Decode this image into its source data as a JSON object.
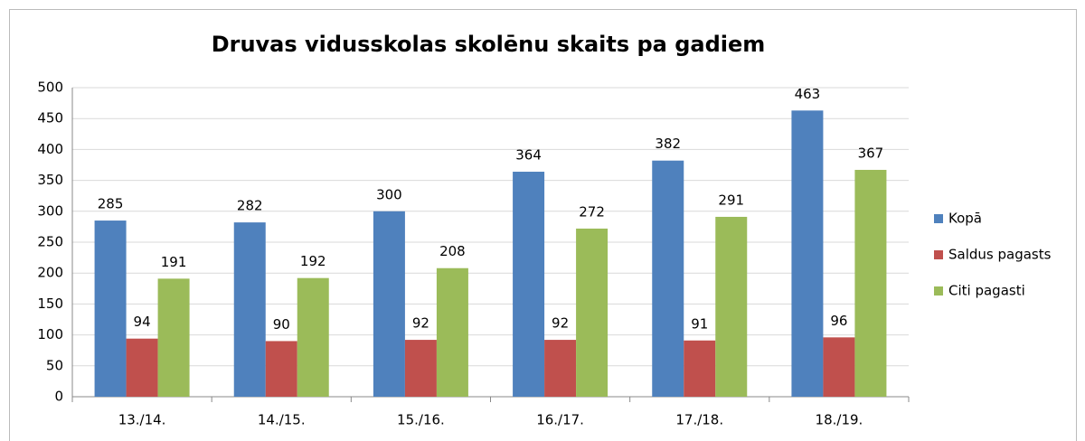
{
  "chart_data": {
    "type": "bar",
    "title": "Druvas vidusskolas skolēnu skaits pa gadiem",
    "categories": [
      "13./14.",
      "14./15.",
      "15./16.",
      "16./17.",
      "17./18.",
      "18./19."
    ],
    "series": [
      {
        "name": "Kopā",
        "color": "#4f81bd",
        "values": [
          285,
          282,
          300,
          364,
          382,
          463
        ]
      },
      {
        "name": "Saldus pagasts",
        "color": "#c0504d",
        "values": [
          94,
          90,
          92,
          92,
          91,
          96
        ]
      },
      {
        "name": "Citi pagasti",
        "color": "#9bbb59",
        "values": [
          191,
          192,
          208,
          272,
          291,
          367
        ]
      }
    ],
    "ylim": [
      0,
      500
    ],
    "yticks": [
      0,
      50,
      100,
      150,
      200,
      250,
      300,
      350,
      400,
      450,
      500
    ],
    "grid": true,
    "legend": "right"
  }
}
